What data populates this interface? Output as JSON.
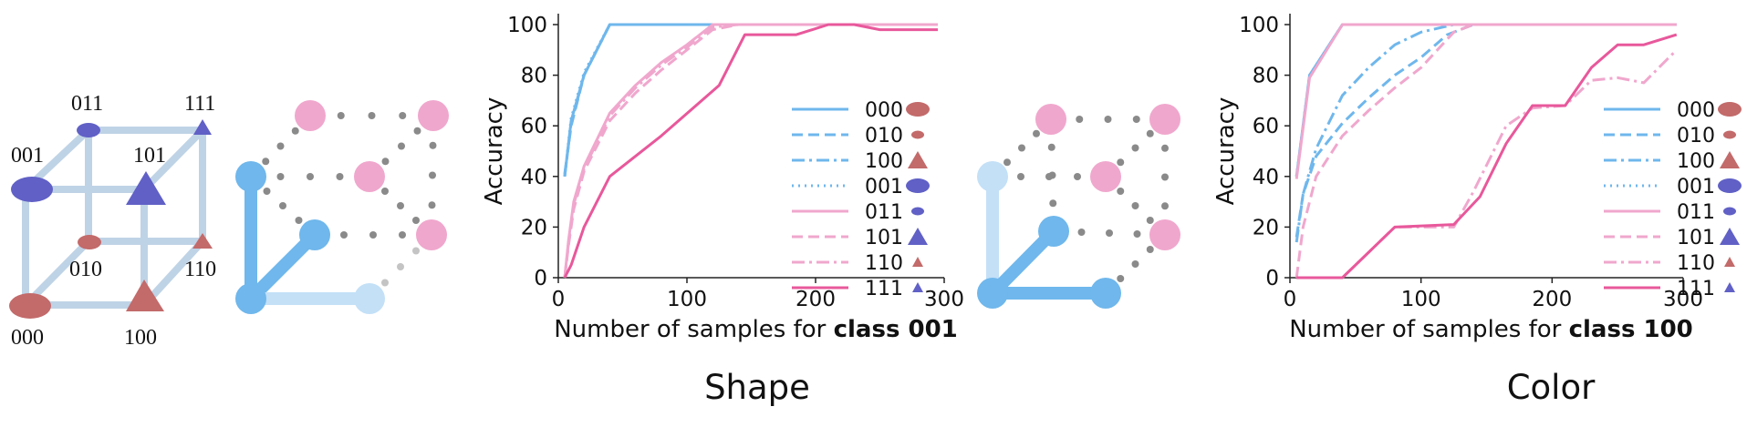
{
  "colors": {
    "blue": "#6fb7ec",
    "light_blue": "#c3e0f7",
    "pink_light": "#f0a7cd",
    "pink_dark": "#e8589b",
    "red_shape": "#c36a6a",
    "blue_shape": "#6060c6",
    "cube_edge": "#bfd3e6",
    "dot": "#8a8a8a"
  },
  "cube": {
    "labels": [
      "000",
      "001",
      "010",
      "011",
      "100",
      "101",
      "110",
      "111"
    ]
  },
  "captions": {
    "left": "Shape",
    "right": "Color"
  },
  "legend": [
    {
      "label": "000",
      "style": "solid",
      "tone": "blue",
      "marker": "ellipse-red"
    },
    {
      "label": "010",
      "style": "dashed",
      "tone": "blue",
      "marker": "small-ellipse-red"
    },
    {
      "label": "100",
      "style": "dashdot",
      "tone": "blue",
      "marker": "triangle-red"
    },
    {
      "label": "001",
      "style": "dotted",
      "tone": "blue",
      "marker": "ellipse-blue"
    },
    {
      "label": "011",
      "style": "solid",
      "tone": "pink_light",
      "marker": "small-ellipse-blue"
    },
    {
      "label": "101",
      "style": "dashed",
      "tone": "pink_light",
      "marker": "triangle-blue"
    },
    {
      "label": "110",
      "style": "dashdot",
      "tone": "pink_light",
      "marker": "small-triangle-red"
    },
    {
      "label": "111",
      "style": "solid",
      "tone": "pink_dark",
      "marker": "small-triangle-blue"
    }
  ],
  "chart_data": [
    {
      "type": "line",
      "ylabel": "Accuracy",
      "xlabel_prefix": "Number of samples for ",
      "xlabel_bold": "class 001",
      "xlim": [
        0,
        300
      ],
      "ylim": [
        0,
        100
      ],
      "xticks": [
        0,
        100,
        200,
        300
      ],
      "yticks": [
        0,
        20,
        40,
        60,
        80,
        100
      ],
      "series": [
        {
          "name": "000",
          "x": [
            5,
            10,
            20,
            40,
            60,
            100,
            150,
            200,
            250,
            295
          ],
          "y": [
            40,
            62,
            80,
            100,
            100,
            100,
            100,
            100,
            100,
            100
          ]
        },
        {
          "name": "010",
          "x": [
            5,
            10,
            20,
            40,
            60,
            100,
            150,
            200,
            250,
            295
          ],
          "y": [
            41,
            60,
            80,
            100,
            100,
            100,
            100,
            100,
            100,
            100
          ]
        },
        {
          "name": "100",
          "x": [
            5,
            10,
            20,
            40,
            60,
            100,
            150,
            200,
            250,
            295
          ],
          "y": [
            40,
            61,
            80,
            100,
            100,
            100,
            100,
            100,
            100,
            100
          ]
        },
        {
          "name": "001",
          "x": [
            5,
            10,
            20,
            40,
            60,
            100,
            150,
            200,
            250,
            295
          ],
          "y": [
            40,
            63,
            81,
            100,
            100,
            100,
            100,
            100,
            100,
            100
          ]
        },
        {
          "name": "011",
          "x": [
            5,
            8,
            12,
            20,
            40,
            60,
            80,
            100,
            120,
            140,
            200,
            250,
            295
          ],
          "y": [
            0,
            15,
            30,
            44,
            65,
            76,
            85,
            92,
            100,
            100,
            100,
            100,
            100
          ]
        },
        {
          "name": "101",
          "x": [
            5,
            8,
            12,
            20,
            40,
            60,
            80,
            100,
            120,
            140,
            200,
            250,
            295
          ],
          "y": [
            0,
            13,
            27,
            42,
            62,
            73,
            82,
            90,
            98,
            100,
            100,
            100,
            100
          ]
        },
        {
          "name": "110",
          "x": [
            5,
            8,
            12,
            20,
            40,
            60,
            80,
            100,
            120,
            140,
            200,
            250,
            295
          ],
          "y": [
            0,
            14,
            29,
            43,
            64,
            75,
            84,
            91,
            99,
            100,
            100,
            100,
            100
          ]
        },
        {
          "name": "111",
          "x": [
            5,
            10,
            20,
            40,
            80,
            125,
            145,
            185,
            210,
            230,
            250,
            295
          ],
          "y": [
            0,
            5,
            20,
            40,
            56,
            76,
            96,
            96,
            100,
            100,
            98,
            98
          ]
        }
      ]
    },
    {
      "type": "line",
      "ylabel": "Accuracy",
      "xlabel_prefix": "Number of samples for ",
      "xlabel_bold": "class 100",
      "xlim": [
        0,
        300
      ],
      "ylim": [
        0,
        100
      ],
      "xticks": [
        0,
        100,
        200,
        300
      ],
      "yticks": [
        0,
        20,
        40,
        60,
        80,
        100
      ],
      "series": [
        {
          "name": "000",
          "x": [
            5,
            15,
            40,
            100,
            200,
            295
          ],
          "y": [
            40,
            80,
            100,
            100,
            100,
            100
          ]
        },
        {
          "name": "010",
          "x": [
            5,
            10,
            20,
            40,
            60,
            80,
            100,
            120,
            140,
            200,
            295
          ],
          "y": [
            16,
            33,
            48,
            61,
            71,
            80,
            87,
            96,
            100,
            100,
            100
          ]
        },
        {
          "name": "100",
          "x": [
            5,
            10,
            20,
            40,
            60,
            80,
            100,
            125,
            140,
            200,
            295
          ],
          "y": [
            14,
            33,
            51,
            72,
            83,
            92,
            97,
            100,
            100,
            100,
            100
          ]
        },
        {
          "name": "001",
          "x": [
            5,
            15,
            40,
            100,
            200,
            295
          ],
          "y": [
            40,
            80,
            100,
            100,
            100,
            100
          ]
        },
        {
          "name": "011",
          "x": [
            5,
            15,
            40,
            100,
            200,
            295
          ],
          "y": [
            39,
            79,
            100,
            100,
            100,
            100
          ]
        },
        {
          "name": "101",
          "x": [
            5,
            10,
            20,
            40,
            60,
            80,
            100,
            125,
            140,
            200,
            295
          ],
          "y": [
            0,
            20,
            40,
            56,
            66,
            75,
            83,
            97,
            100,
            100,
            100
          ]
        },
        {
          "name": "110",
          "x": [
            5,
            40,
            80,
            125,
            140,
            165,
            185,
            210,
            230,
            250,
            270,
            295
          ],
          "y": [
            0,
            0,
            20,
            20,
            34,
            60,
            67,
            68,
            78,
            79,
            77,
            90
          ]
        },
        {
          "name": "111",
          "x": [
            5,
            40,
            80,
            125,
            145,
            165,
            185,
            210,
            230,
            250,
            270,
            295
          ],
          "y": [
            0,
            0,
            20,
            21,
            32,
            53,
            68,
            68,
            83,
            92,
            92,
            96
          ]
        }
      ]
    }
  ]
}
